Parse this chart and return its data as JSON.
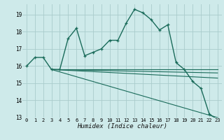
{
  "title": "",
  "xlabel": "Humidex (Indice chaleur)",
  "background_color": "#ceeaea",
  "grid_color": "#aacccc",
  "line_color": "#1a6b5a",
  "xlim": [
    -0.5,
    23.5
  ],
  "ylim": [
    13,
    19.6
  ],
  "yticks": [
    13,
    14,
    15,
    16,
    17,
    18,
    19
  ],
  "xticks": [
    0,
    1,
    2,
    3,
    4,
    5,
    6,
    7,
    8,
    9,
    10,
    11,
    12,
    13,
    14,
    15,
    16,
    17,
    18,
    19,
    20,
    21,
    22,
    23
  ],
  "curve_x": [
    0,
    1,
    2,
    3,
    4,
    5,
    6,
    7,
    8,
    9,
    10,
    11,
    12,
    13,
    14,
    15,
    16,
    17,
    18,
    19,
    20,
    21,
    22,
    23
  ],
  "curve_y": [
    16.0,
    16.5,
    16.5,
    15.8,
    15.8,
    17.6,
    18.2,
    16.6,
    16.8,
    17.0,
    17.5,
    17.5,
    18.5,
    19.3,
    19.1,
    18.7,
    18.1,
    18.4,
    16.2,
    15.8,
    15.1,
    14.7,
    13.2,
    12.9
  ],
  "line2_x": [
    3,
    23
  ],
  "line2_y": [
    15.8,
    15.8
  ],
  "line3_x": [
    3,
    23
  ],
  "line3_y": [
    15.8,
    15.6
  ],
  "line4_x": [
    3,
    23
  ],
  "line4_y": [
    15.8,
    15.3
  ],
  "line5_x": [
    3,
    23
  ],
  "line5_y": [
    15.8,
    13.0
  ]
}
